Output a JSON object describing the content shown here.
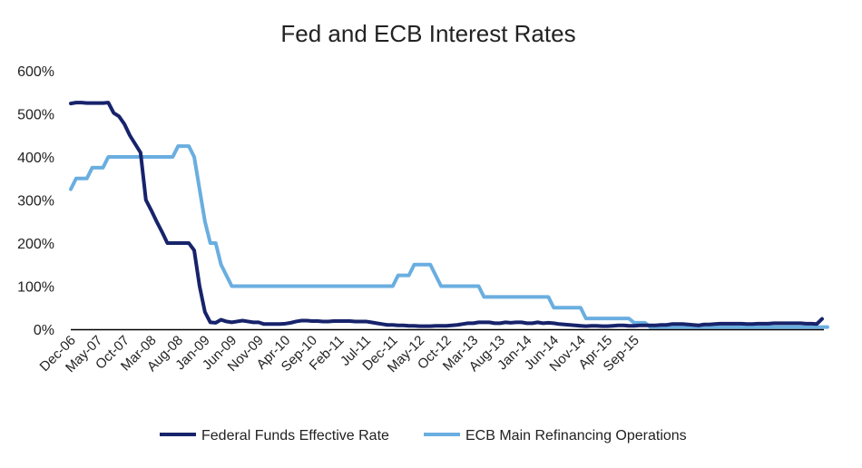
{
  "chart_data": {
    "type": "line",
    "title": "Fed and ECB Interest Rates",
    "xlabel": "",
    "ylabel": "",
    "ylim": [
      0,
      600
    ],
    "yticks": [
      "0%",
      "100%",
      "200%",
      "300%",
      "400%",
      "500%",
      "600%"
    ],
    "ytick_values": [
      0,
      100,
      200,
      300,
      400,
      500,
      600
    ],
    "x_tick_labels": [
      "Dec-06",
      "May-07",
      "Oct-07",
      "Mar-08",
      "Aug-08",
      "Jan-09",
      "Jun-09",
      "Nov-09",
      "Apr-10",
      "Sep-10",
      "Feb-11",
      "Jul-11",
      "Dec-11",
      "May-12",
      "Oct-12",
      "Mar-13",
      "Aug-13",
      "Jan-14",
      "Jun-14",
      "Nov-14",
      "Apr-15",
      "Sep-15"
    ],
    "x_start": "Dec-06",
    "x_frequency": "monthly",
    "grid": false,
    "legend_position": "bottom",
    "colors": {
      "fed": "#17236b",
      "ecb": "#6aaee0",
      "axis": "#000000"
    },
    "series": [
      {
        "name": "Federal Funds Effective Rate",
        "color": "#17236b",
        "values": [
          524,
          526,
          526,
          525,
          525,
          525,
          525,
          526,
          502,
          494,
          476,
          450,
          430,
          410,
          300,
          276,
          250,
          226,
          200,
          200,
          200,
          200,
          200,
          183,
          100,
          40,
          16,
          15,
          22,
          18,
          16,
          18,
          20,
          18,
          16,
          16,
          12,
          12,
          12,
          12,
          13,
          15,
          18,
          20,
          20,
          19,
          19,
          18,
          18,
          19,
          19,
          19,
          19,
          18,
          18,
          18,
          16,
          14,
          12,
          10,
          10,
          9,
          9,
          8,
          8,
          7,
          7,
          7,
          8,
          8,
          8,
          9,
          10,
          12,
          14,
          14,
          16,
          16,
          16,
          14,
          14,
          16,
          15,
          16,
          16,
          14,
          14,
          16,
          14,
          15,
          14,
          12,
          11,
          10,
          9,
          8,
          7,
          8,
          8,
          7,
          7,
          8,
          9,
          9,
          8,
          8,
          9,
          9,
          9,
          9,
          10,
          10,
          12,
          12,
          12,
          11,
          10,
          9,
          11,
          11,
          12,
          13,
          13,
          13,
          13,
          13,
          12,
          12,
          13,
          13,
          13,
          14,
          14,
          14,
          14,
          14,
          14,
          13,
          13,
          12,
          24
        ]
      },
      {
        "name": "ECB Main Refinancing Operations",
        "color": "#6aaee0",
        "values": [
          325,
          350,
          350,
          350,
          375,
          375,
          375,
          400,
          400,
          400,
          400,
          400,
          400,
          400,
          400,
          400,
          400,
          400,
          400,
          400,
          425,
          425,
          425,
          400,
          325,
          250,
          200,
          200,
          150,
          125,
          100,
          100,
          100,
          100,
          100,
          100,
          100,
          100,
          100,
          100,
          100,
          100,
          100,
          100,
          100,
          100,
          100,
          100,
          100,
          100,
          100,
          100,
          100,
          100,
          100,
          100,
          100,
          100,
          100,
          100,
          100,
          125,
          125,
          125,
          150,
          150,
          150,
          150,
          125,
          100,
          100,
          100,
          100,
          100,
          100,
          100,
          100,
          75,
          75,
          75,
          75,
          75,
          75,
          75,
          75,
          75,
          75,
          75,
          75,
          75,
          50,
          50,
          50,
          50,
          50,
          50,
          25,
          25,
          25,
          25,
          25,
          25,
          25,
          25,
          25,
          15,
          15,
          15,
          5,
          5,
          5,
          5,
          5,
          5,
          5,
          5,
          5,
          5,
          5,
          5,
          5,
          5,
          5,
          5,
          5,
          5,
          5,
          5,
          5,
          5,
          5,
          5,
          5,
          5,
          5,
          5,
          5,
          5,
          5,
          5,
          5,
          5
        ]
      }
    ]
  }
}
